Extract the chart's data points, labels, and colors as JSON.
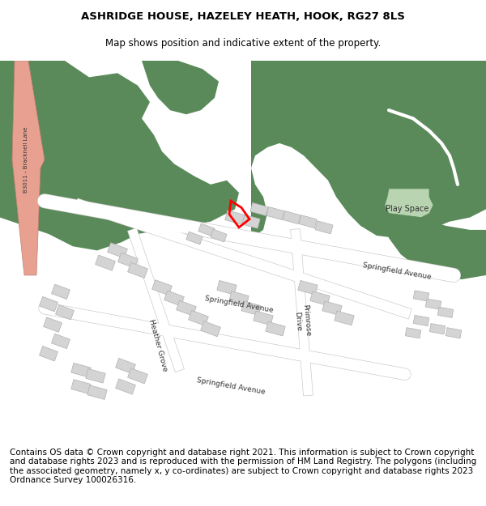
{
  "title_line1": "ASHRIDGE HOUSE, HAZELEY HEATH, HOOK, RG27 8LS",
  "title_line2": "Map shows position and indicative extent of the property.",
  "footer_text": "Contains OS data © Crown copyright and database right 2021. This information is subject to Crown copyright and database rights 2023 and is reproduced with the permission of HM Land Registry. The polygons (including the associated geometry, namely x, y co-ordinates) are subject to Crown copyright and database rights 2023 Ordnance Survey 100026316.",
  "bg_color": "#ffffff",
  "map_bg": "#f5f5f5",
  "woodland_color": "#5a8a5a",
  "road_color": "#ffffff",
  "road_outline": "#cccccc",
  "building_color": "#d4d4d4",
  "building_outline": "#b0b0b0",
  "property_color": "#ff0000",
  "road_salmon": "#e8a090",
  "play_space_color": "#b8d4b0",
  "title_fontsize": 9.5,
  "subtitle_fontsize": 8.5,
  "footer_fontsize": 7.5
}
